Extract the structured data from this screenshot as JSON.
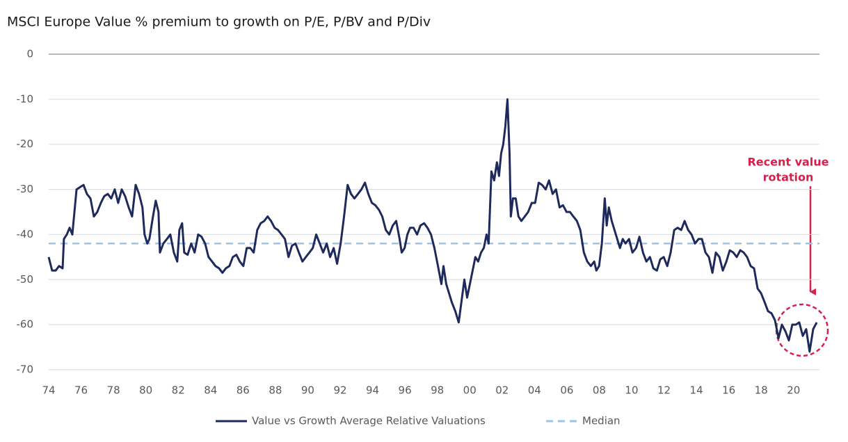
{
  "chart_data": {
    "type": "line",
    "title": "MSCI Europe Value % premium to growth on P/E, P/BV and P/Div",
    "annotation": [
      "Recent value",
      "rotation"
    ],
    "annotation_color": "#d6204e",
    "xlim": [
      1974,
      2021.6
    ],
    "xticks": [
      {
        "value": 1974,
        "label": "74"
      },
      {
        "value": 1976,
        "label": "76"
      },
      {
        "value": 1978,
        "label": "78"
      },
      {
        "value": 1980,
        "label": "80"
      },
      {
        "value": 1982,
        "label": "82"
      },
      {
        "value": 1984,
        "label": "84"
      },
      {
        "value": 1986,
        "label": "86"
      },
      {
        "value": 1988,
        "label": "88"
      },
      {
        "value": 1990,
        "label": "90"
      },
      {
        "value": 1992,
        "label": "92"
      },
      {
        "value": 1994,
        "label": "94"
      },
      {
        "value": 1996,
        "label": "96"
      },
      {
        "value": 1998,
        "label": "98"
      },
      {
        "value": 2000,
        "label": "00"
      },
      {
        "value": 2002,
        "label": "02"
      },
      {
        "value": 2004,
        "label": "04"
      },
      {
        "value": 2006,
        "label": "06"
      },
      {
        "value": 2008,
        "label": "08"
      },
      {
        "value": 2010,
        "label": "10"
      },
      {
        "value": 2012,
        "label": "12"
      },
      {
        "value": 2014,
        "label": "14"
      },
      {
        "value": 2016,
        "label": "16"
      },
      {
        "value": 2018,
        "label": "18"
      },
      {
        "value": 2020,
        "label": "20"
      }
    ],
    "ylim": [
      -70,
      0
    ],
    "yticks": [
      0,
      -10,
      -20,
      -30,
      -40,
      -50,
      -60,
      -70
    ],
    "grid": true,
    "series": [
      {
        "name": "Value vs Growth Average Relative Valuations",
        "color": "#1f2a5c",
        "dashed": false,
        "x": [
          1974.0,
          1974.21,
          1974.43,
          1974.64,
          1974.86,
          1974.94,
          1975.12,
          1975.29,
          1975.46,
          1975.55,
          1975.72,
          1975.93,
          1976.15,
          1976.36,
          1976.58,
          1976.79,
          1977.0,
          1977.22,
          1977.43,
          1977.65,
          1977.86,
          1978.08,
          1978.29,
          1978.51,
          1978.72,
          1978.94,
          1979.15,
          1979.37,
          1979.58,
          1979.79,
          1979.92,
          1980.09,
          1980.22,
          1980.44,
          1980.61,
          1980.78,
          1980.87,
          1981.08,
          1981.3,
          1981.51,
          1981.73,
          1981.94,
          1982.07,
          1982.24,
          1982.37,
          1982.58,
          1982.8,
          1983.01,
          1983.23,
          1983.44,
          1983.66,
          1983.87,
          1984.09,
          1984.3,
          1984.52,
          1984.73,
          1984.94,
          1985.16,
          1985.37,
          1985.59,
          1985.8,
          1986.02,
          1986.23,
          1986.45,
          1986.66,
          1986.88,
          1987.09,
          1987.31,
          1987.52,
          1987.73,
          1987.95,
          1988.16,
          1988.38,
          1988.59,
          1988.81,
          1989.02,
          1989.24,
          1989.45,
          1989.67,
          1989.88,
          1990.1,
          1990.31,
          1990.52,
          1990.74,
          1990.95,
          1991.17,
          1991.38,
          1991.6,
          1991.81,
          1992.03,
          1992.24,
          1992.46,
          1992.67,
          1992.88,
          1993.1,
          1993.31,
          1993.53,
          1993.74,
          1993.96,
          1994.17,
          1994.39,
          1994.6,
          1994.82,
          1995.03,
          1995.25,
          1995.46,
          1995.67,
          1995.8,
          1995.98,
          1996.15,
          1996.32,
          1996.53,
          1996.75,
          1996.96,
          1997.18,
          1997.39,
          1997.61,
          1997.82,
          1998.04,
          1998.25,
          1998.38,
          1998.55,
          1998.72,
          1998.89,
          1999.11,
          1999.32,
          1999.45,
          1999.67,
          1999.84,
          2000.01,
          2000.18,
          2000.35,
          2000.52,
          2000.7,
          2000.87,
          2001.04,
          2001.17,
          2001.34,
          2001.51,
          2001.68,
          2001.81,
          2001.94,
          2002.07,
          2002.2,
          2002.33,
          2002.46,
          2002.54,
          2002.67,
          2002.84,
          2003.01,
          2003.19,
          2003.4,
          2003.61,
          2003.83,
          2004.04,
          2004.26,
          2004.47,
          2004.69,
          2004.9,
          2005.12,
          2005.33,
          2005.55,
          2005.76,
          2005.98,
          2006.19,
          2006.4,
          2006.62,
          2006.83,
          2007.05,
          2007.26,
          2007.48,
          2007.69,
          2007.82,
          2007.99,
          2008.16,
          2008.34,
          2008.46,
          2008.59,
          2008.77,
          2008.94,
          2009.11,
          2009.28,
          2009.45,
          2009.62,
          2009.84,
          2010.05,
          2010.27,
          2010.48,
          2010.7,
          2010.91,
          2011.13,
          2011.34,
          2011.56,
          2011.77,
          2011.98,
          2012.2,
          2012.41,
          2012.63,
          2012.84,
          2013.06,
          2013.27,
          2013.49,
          2013.7,
          2013.92,
          2014.13,
          2014.34,
          2014.56,
          2014.77,
          2014.99,
          2015.2,
          2015.42,
          2015.63,
          2015.85,
          2016.06,
          2016.28,
          2016.49,
          2016.71,
          2016.92,
          2017.13,
          2017.35,
          2017.56,
          2017.78,
          2017.99,
          2018.21,
          2018.42,
          2018.64,
          2018.85,
          2019.07,
          2019.28,
          2019.5,
          2019.71,
          2019.92,
          2020.14,
          2020.35,
          2020.57,
          2020.78,
          2020.99,
          2021.21,
          2021.43
        ],
        "values": [
          -45,
          -48,
          -48,
          -47,
          -47.5,
          -41,
          -40,
          -38.5,
          -40,
          -36.5,
          -30,
          -29.5,
          -29,
          -31,
          -32,
          -36,
          -35,
          -33,
          -31.5,
          -31,
          -32,
          -30,
          -33,
          -30,
          -31.5,
          -34,
          -36,
          -29,
          -31,
          -34,
          -40,
          -42,
          -41,
          -36,
          -32.5,
          -35,
          -44,
          -42,
          -41,
          -40,
          -44,
          -46,
          -39,
          -37.5,
          -44,
          -44.5,
          -42,
          -44,
          -40,
          -40.5,
          -42,
          -45,
          -46,
          -47,
          -47.5,
          -48.5,
          -47.5,
          -47,
          -45,
          -44.5,
          -46,
          -47,
          -43,
          -43,
          -44,
          -39,
          -37.5,
          -37,
          -36,
          -37,
          -38.5,
          -39,
          -40,
          -41,
          -45,
          -42.5,
          -42,
          -44,
          -46,
          -45,
          -44,
          -43,
          -40,
          -42,
          -44,
          -42,
          -45,
          -43,
          -46.5,
          -42,
          -36,
          -29,
          -31,
          -32,
          -31,
          -30,
          -28.5,
          -31,
          -33,
          -33.5,
          -34.5,
          -36,
          -39,
          -40,
          -38,
          -37,
          -41,
          -44,
          -43,
          -40,
          -38.5,
          -38.5,
          -40,
          -38,
          -37.5,
          -38.5,
          -40,
          -43,
          -47,
          -51,
          -47,
          -51,
          -53,
          -55,
          -57,
          -59.5,
          -56,
          -50,
          -54,
          -51,
          -48,
          -45,
          -46,
          -44,
          -43,
          -40,
          -42,
          -26,
          -28,
          -24,
          -27,
          -22,
          -20,
          -16,
          -10,
          -22,
          -36,
          -32,
          -32,
          -36,
          -37,
          -36,
          -35,
          -33,
          -33,
          -28.5,
          -29,
          -30,
          -28,
          -31,
          -30,
          -34,
          -33.5,
          -35,
          -35,
          -36,
          -37,
          -39,
          -44,
          -46,
          -47,
          -46,
          -48,
          -47,
          -42,
          -32,
          -38,
          -34,
          -37,
          -39,
          -41,
          -43,
          -41,
          -42,
          -41,
          -44,
          -43,
          -40.5,
          -44,
          -46,
          -45,
          -47.5,
          -48,
          -45.5,
          -45,
          -47,
          -44,
          -39,
          -38.5,
          -39,
          -37,
          -39,
          -40,
          -42,
          -41,
          -41,
          -44,
          -45,
          -48.5,
          -44,
          -45,
          -48,
          -46,
          -43.5,
          -44,
          -45,
          -43.5,
          -44,
          -45,
          -47,
          -47.5,
          -52,
          -53,
          -55,
          -57,
          -57.5,
          -59,
          -63,
          -60,
          -61.5,
          -63.5,
          -60,
          -60,
          -59.5,
          -62.5,
          -61,
          -66,
          -61,
          -59.5
        ]
      },
      {
        "name": "Median",
        "color": "#9dc3e6",
        "dashed": true,
        "x": [
          1974,
          2021.6
        ],
        "values": [
          -42,
          -42
        ]
      }
    ]
  }
}
